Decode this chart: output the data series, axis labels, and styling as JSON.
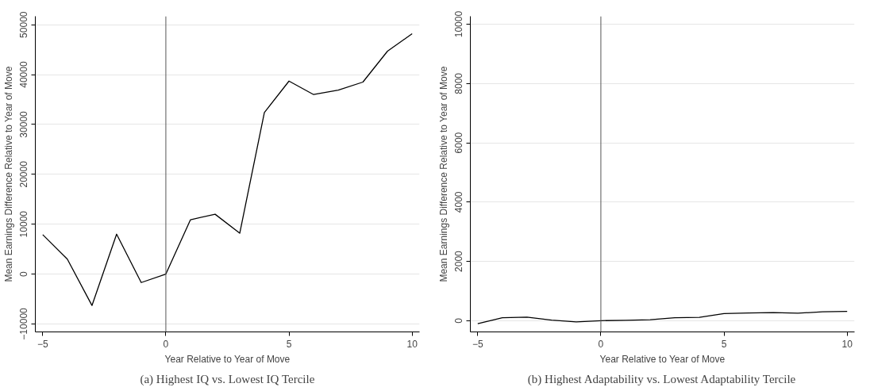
{
  "chart_data": [
    {
      "type": "line",
      "title": "(a) Highest IQ vs. Lowest IQ Tercile",
      "xlabel": "Year Relative to Year of Move",
      "ylabel": "Mean Earnings Difference Relative to Year of Move",
      "x": [
        -5,
        -4,
        -3,
        -2,
        -1,
        0,
        1,
        2,
        3,
        4,
        5,
        6,
        7,
        8,
        9,
        10
      ],
      "series": [
        {
          "color": "#000000",
          "values": [
            7900,
            3000,
            -6300,
            8000,
            -1700,
            0,
            10900,
            12000,
            8200,
            32400,
            38700,
            36000,
            36900,
            38500,
            44700,
            48200
          ]
        }
      ],
      "xlim": [
        -5.3,
        10.3
      ],
      "ylim": [
        -11600,
        51700
      ],
      "xticks": [
        {
          "value": -5,
          "label": "−5"
        },
        0,
        5,
        10
      ],
      "yticks": [
        {
          "value": -10000,
          "label": "−10000"
        },
        0,
        10000,
        20000,
        30000,
        40000,
        50000
      ],
      "ref_lines": [
        {
          "axis": "x",
          "value": 0,
          "color": "#555555"
        }
      ],
      "grid": "y"
    },
    {
      "type": "line",
      "title": "(b) Highest Adaptability vs. Lowest Adaptability Tercile",
      "xlabel": "Year Relative to Year of Move",
      "ylabel": "Mean Earnings Difference Relative to Year of Move",
      "x": [
        -5,
        -4,
        -3,
        -2,
        -1,
        0,
        1,
        2,
        3,
        4,
        5,
        6,
        7,
        8,
        9,
        10
      ],
      "series": [
        {
          "color": "#000000",
          "values": [
            -100,
            100,
            120,
            20,
            -40,
            0,
            10,
            30,
            100,
            110,
            240,
            260,
            270,
            250,
            300,
            310
          ]
        }
      ],
      "xlim": [
        -5.3,
        10.3
      ],
      "ylim": [
        -380,
        10270
      ],
      "xticks": [
        {
          "value": -5,
          "label": "−5"
        },
        0,
        5,
        10
      ],
      "yticks": [
        0,
        2000,
        4000,
        6000,
        8000,
        10000
      ],
      "ref_lines": [
        {
          "axis": "x",
          "value": 0,
          "color": "#555555"
        }
      ],
      "grid": "y"
    }
  ]
}
